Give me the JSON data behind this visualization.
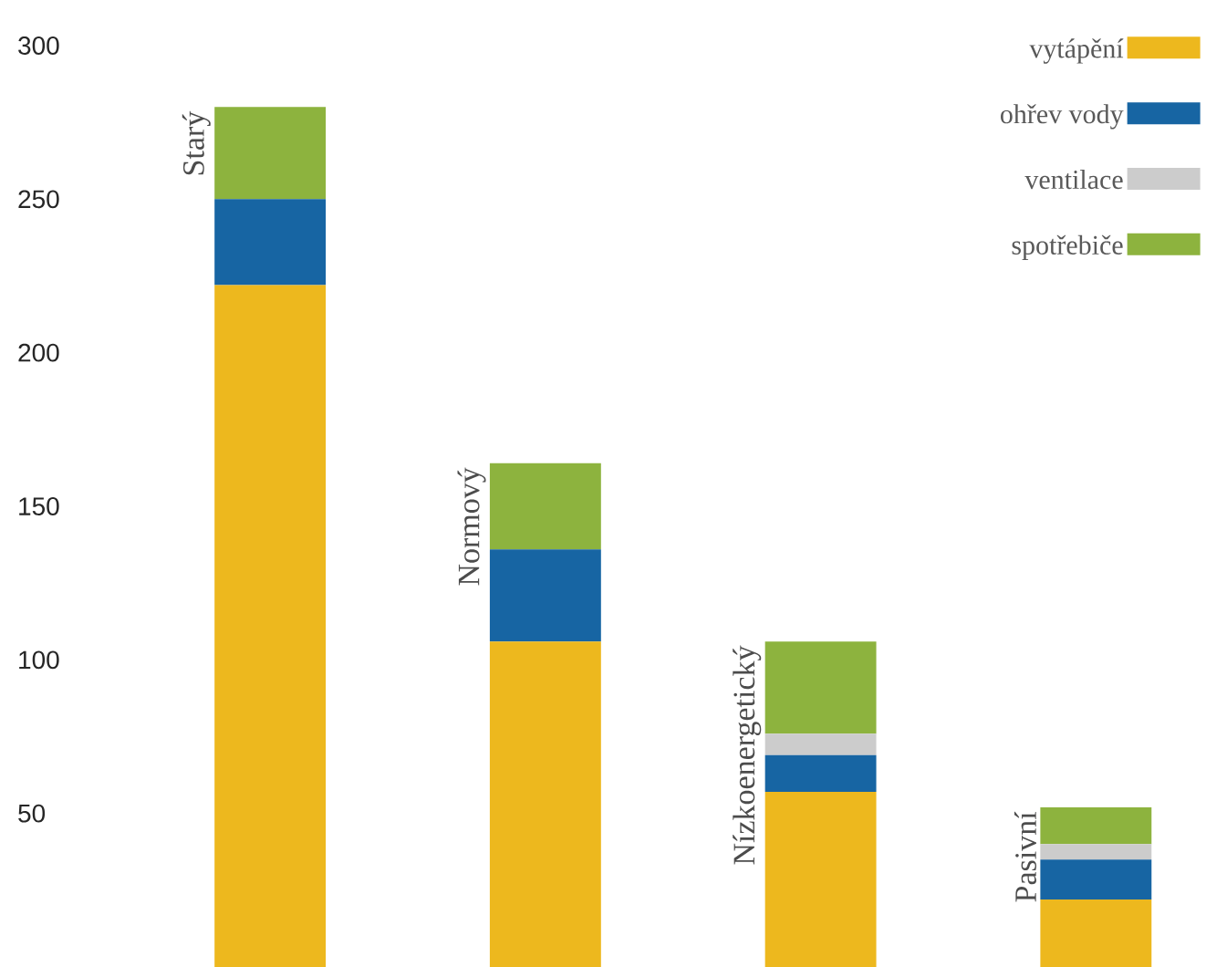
{
  "chart_data": {
    "type": "bar",
    "stacked": true,
    "legend": "top right",
    "categories": [
      "Starý",
      "Normový",
      "Nízkoenergetický",
      "Pasivní"
    ],
    "series": [
      {
        "name": "vytápění",
        "color": "#edb81e",
        "values": [
          222,
          106,
          57,
          22
        ]
      },
      {
        "name": "ohřev vody",
        "color": "#1765a3",
        "values": [
          28,
          30,
          12,
          13
        ]
      },
      {
        "name": "ventilace",
        "color": "#cccccc",
        "values": [
          0,
          0,
          7,
          5
        ]
      },
      {
        "name": "spotřebiče",
        "color": "#8db33e",
        "values": [
          30,
          28,
          30,
          12
        ]
      }
    ],
    "ylim": [
      0,
      300
    ],
    "yticks": [
      50,
      100,
      150,
      200,
      250,
      300
    ]
  }
}
